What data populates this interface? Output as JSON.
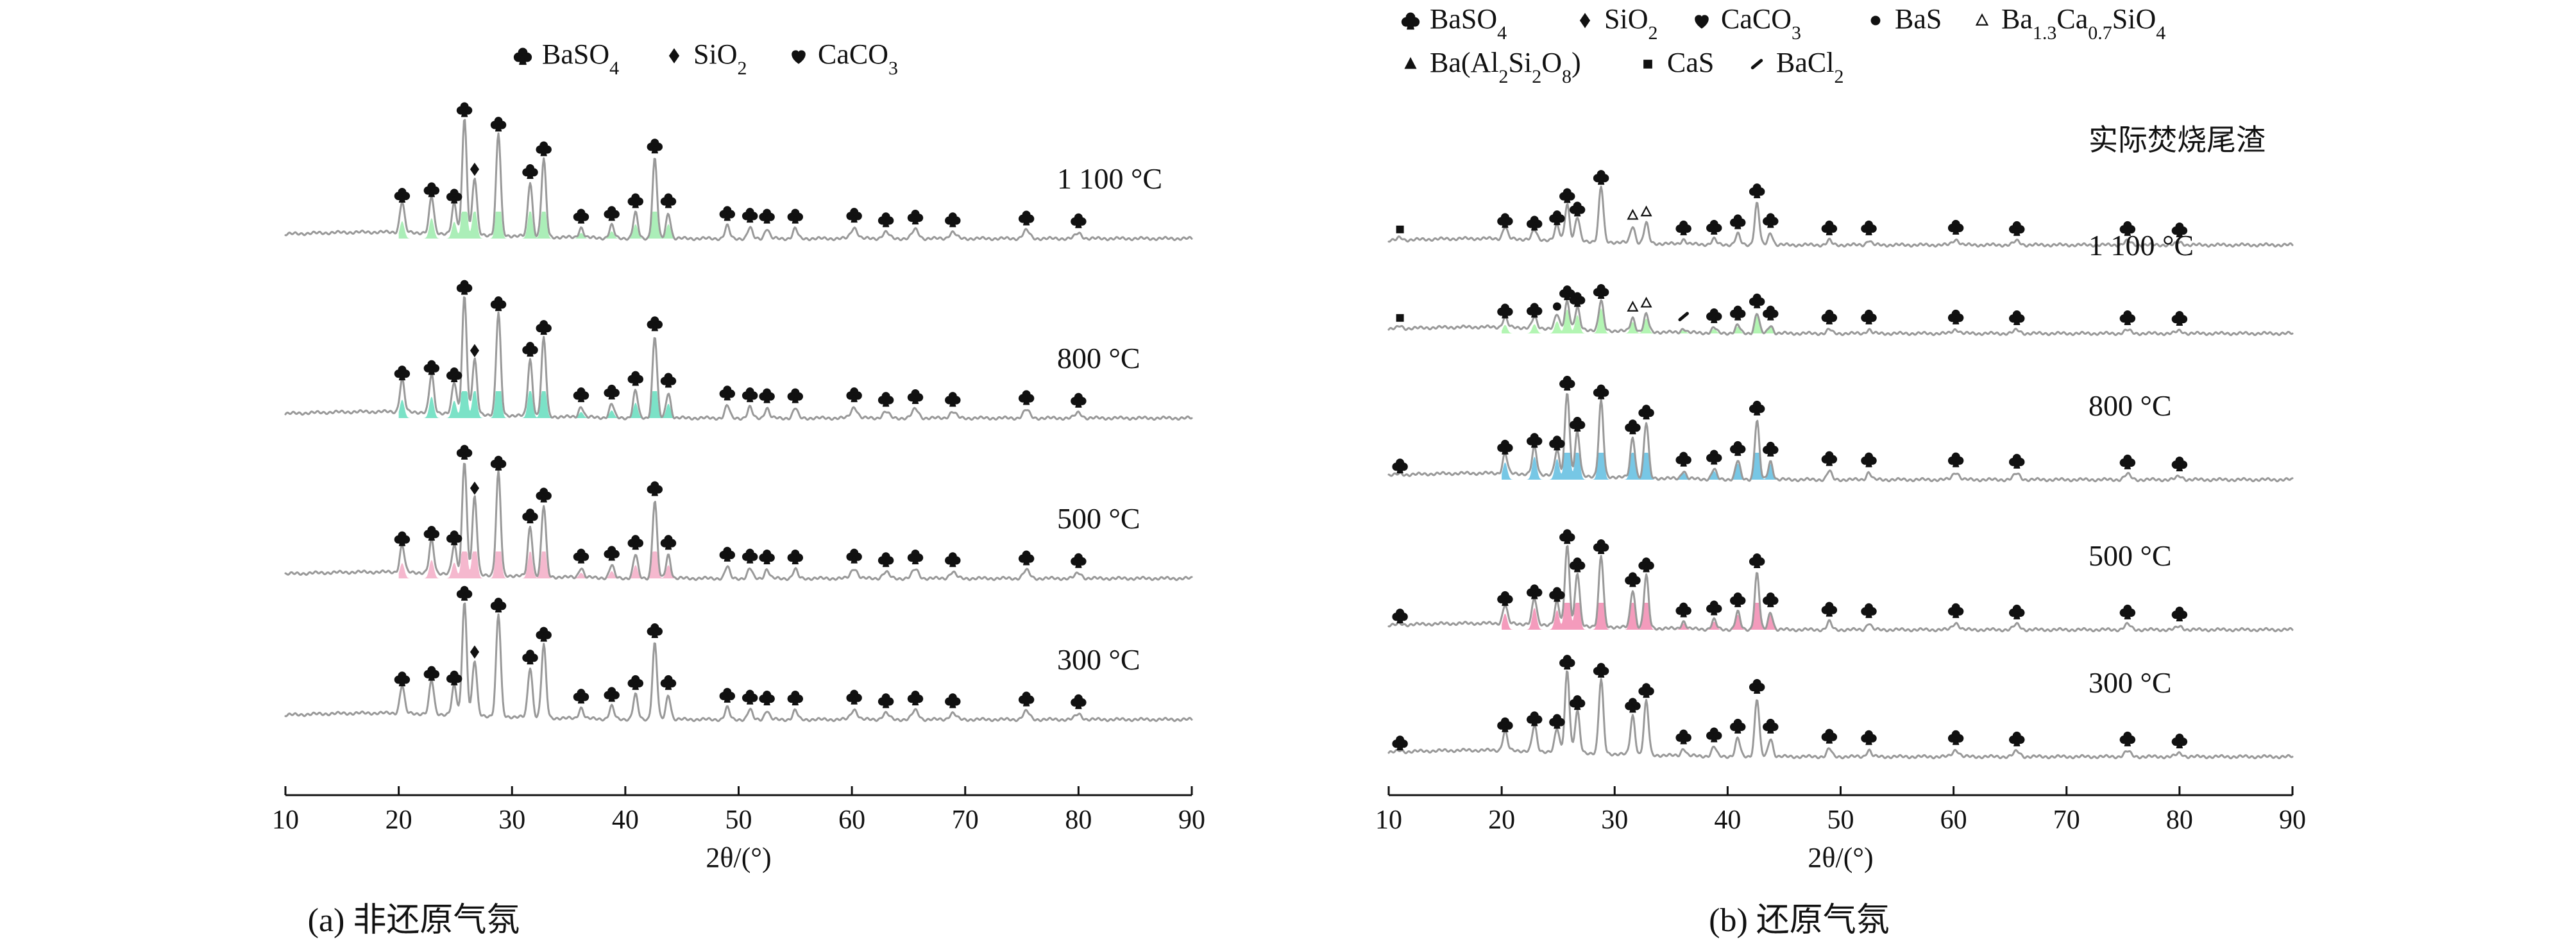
{
  "chart_data": [
    {
      "type": "line",
      "panel": "a",
      "title": "(a) 非还原气氛",
      "xlabel": "2θ/(°)",
      "ylabel": "",
      "xlim": [
        10,
        90
      ],
      "x_ticks": [
        10,
        20,
        30,
        40,
        50,
        60,
        70,
        80,
        90
      ],
      "legend_position": "top",
      "grid": false,
      "legend": [
        {
          "symbol": "club",
          "label_main": "BaSO",
          "label_sub": "4"
        },
        {
          "symbol": "diamond",
          "label_main": "SiO",
          "label_sub": "2"
        },
        {
          "symbol": "heart",
          "label_main": "CaCO",
          "label_sub": "3"
        }
      ],
      "series": [
        {
          "name": "1 100 °C",
          "label": "1 100 °C",
          "highlight": "#8fe8a0",
          "x": [
            10,
            20.3,
            22.9,
            24.9,
            25.8,
            26.7,
            28.8,
            31.6,
            32.8,
            36.1,
            38.8,
            40.9,
            42.6,
            43.8,
            49.0,
            51.0,
            52.5,
            55.0,
            60.2,
            63.0,
            65.6,
            68.9,
            75.4,
            80.0,
            90
          ],
          "y": [
            0,
            34,
            40,
            33,
            128,
            62,
            112,
            60,
            85,
            11,
            14,
            28,
            88,
            28,
            14,
            12,
            11,
            11,
            12,
            7,
            10,
            7,
            9,
            6,
            0
          ]
        },
        {
          "name": "800 °C",
          "label": "800 °C",
          "highlight": "#4fd8b4",
          "x": [
            10,
            20.3,
            22.9,
            24.9,
            25.8,
            26.7,
            28.8,
            31.6,
            32.8,
            36.1,
            38.8,
            40.9,
            42.6,
            43.8,
            49.0,
            51.0,
            52.5,
            55.0,
            60.2,
            63.0,
            65.6,
            68.9,
            75.4,
            80.0,
            90
          ],
          "y": [
            0,
            36,
            42,
            34,
            130,
            60,
            112,
            62,
            86,
            12,
            15,
            30,
            90,
            28,
            14,
            12,
            11,
            11,
            12,
            7,
            10,
            7,
            9,
            6,
            0
          ]
        },
        {
          "name": "500 °C",
          "label": "500 °C",
          "highlight": "#f2a0be",
          "x": [
            10,
            20.3,
            22.9,
            24.9,
            25.8,
            26.7,
            28.8,
            31.6,
            32.8,
            36.1,
            38.8,
            40.9,
            42.6,
            43.8,
            49.0,
            51.0,
            52.5,
            55.0,
            60.2,
            63.0,
            65.6,
            68.9,
            75.4,
            80.0,
            90
          ],
          "y": [
            0,
            30,
            36,
            31,
            125,
            85,
            113,
            55,
            78,
            11,
            14,
            26,
            85,
            26,
            13,
            11,
            10,
            10,
            11,
            7,
            10,
            7,
            9,
            6,
            0
          ]
        },
        {
          "name": "300 °C",
          "label": "300 °C",
          "highlight": "",
          "x": [
            10,
            20.3,
            22.9,
            24.9,
            25.8,
            26.7,
            28.8,
            31.6,
            32.8,
            36.1,
            38.8,
            40.9,
            42.6,
            43.8,
            49.0,
            51.0,
            52.5,
            55.0,
            60.2,
            63.0,
            65.6,
            68.9,
            75.4,
            80.0,
            90
          ],
          "y": [
            0,
            31,
            37,
            32,
            125,
            60,
            112,
            55,
            80,
            12,
            14,
            27,
            84,
            27,
            13,
            11,
            10,
            10,
            11,
            7,
            10,
            7,
            9,
            6,
            0
          ]
        }
      ]
    },
    {
      "type": "line",
      "panel": "b",
      "title": "(b) 还原气氛",
      "xlabel": "2θ/(°)",
      "ylabel": "",
      "xlim": [
        10,
        90
      ],
      "x_ticks": [
        10,
        20,
        30,
        40,
        50,
        60,
        70,
        80,
        90
      ],
      "legend_position": "top",
      "grid": false,
      "legend": [
        {
          "symbol": "club",
          "label_main": "BaSO",
          "label_sub": "4"
        },
        {
          "symbol": "diamond",
          "label_main": "SiO",
          "label_sub": "2"
        },
        {
          "symbol": "heart",
          "label_main": "CaCO",
          "label_sub": "3"
        },
        {
          "symbol": "dot",
          "label_main": "BaS",
          "label_sub": ""
        },
        {
          "symbol": "open-triangle",
          "label_main": "Ba",
          "label_sub": "1.3",
          "label_main2": "Ca",
          "label_sub2": "0.7",
          "label_tail": "SiO",
          "label_tail_sub": "4"
        },
        {
          "symbol": "triangle",
          "label_main": "Ba(Al",
          "label_sub": "2",
          "label_main2": "Si",
          "label_sub2": "2",
          "label_tail": "O",
          "label_tail_sub": "8",
          "label_end": ")"
        },
        {
          "symbol": "square",
          "label_main": "CaS",
          "label_sub": ""
        },
        {
          "symbol": "slash",
          "label_main": "BaCl",
          "label_sub": "2"
        }
      ],
      "series": [
        {
          "name": "实际焚烧尾渣",
          "label": "实际焚烧尾渣",
          "highlight": "",
          "x": [
            10,
            11,
            20.3,
            22.9,
            24.9,
            25.8,
            26.7,
            28.8,
            31.6,
            32.8,
            36.1,
            38.8,
            40.9,
            42.6,
            43.8,
            49.0,
            52.5,
            60.2,
            65.6,
            75.4,
            80.0,
            90
          ],
          "y": [
            0,
            4,
            18,
            14,
            22,
            55,
            35,
            82,
            25,
            30,
            7,
            8,
            16,
            62,
            18,
            7,
            7,
            8,
            6,
            6,
            4,
            0
          ]
        },
        {
          "name": "1 100 °C",
          "label": "1 100 °C",
          "highlight": "#9af29a",
          "x": [
            10,
            11,
            20.3,
            22.9,
            24.9,
            25.8,
            26.7,
            28.8,
            31.6,
            32.8,
            36.1,
            38.8,
            40.9,
            42.6,
            43.8,
            49.0,
            52.5,
            60.2,
            65.6,
            75.4,
            80.0,
            90
          ],
          "y": [
            0,
            4,
            15,
            16,
            21,
            42,
            32,
            44,
            20,
            26,
            6,
            8,
            12,
            30,
            12,
            6,
            6,
            6,
            5,
            5,
            4,
            0
          ]
        },
        {
          "name": "800 °C",
          "label": "800 °C",
          "highlight": "#4ab4dc",
          "x": [
            10,
            11,
            20.3,
            22.9,
            24.9,
            25.8,
            26.7,
            28.8,
            31.6,
            32.8,
            36.1,
            38.8,
            40.9,
            42.6,
            43.8,
            49.0,
            52.5,
            60.2,
            65.6,
            75.4,
            80.0,
            90
          ],
          "y": [
            0,
            2,
            30,
            40,
            36,
            125,
            64,
            112,
            60,
            82,
            12,
            15,
            28,
            88,
            27,
            13,
            11,
            11,
            9,
            8,
            5,
            0
          ]
        },
        {
          "name": "500 °C",
          "label": "500 °C",
          "highlight": "#f07aa6",
          "x": [
            10,
            11,
            20.3,
            22.9,
            24.9,
            25.8,
            26.7,
            28.8,
            31.6,
            32.8,
            36.1,
            38.8,
            40.9,
            42.6,
            43.8,
            49.0,
            52.5,
            60.2,
            65.6,
            75.4,
            80.0,
            90
          ],
          "y": [
            0,
            2,
            28,
            38,
            34,
            120,
            78,
            105,
            56,
            78,
            11,
            14,
            26,
            84,
            26,
            12,
            10,
            10,
            8,
            8,
            5,
            0
          ]
        },
        {
          "name": "300 °C",
          "label": "300 °C",
          "highlight": "",
          "x": [
            10,
            11,
            20.3,
            22.9,
            24.9,
            25.8,
            26.7,
            28.8,
            31.6,
            32.8,
            36.1,
            38.8,
            40.9,
            42.6,
            43.8,
            49.0,
            52.5,
            60.2,
            65.6,
            75.4,
            80.0,
            90
          ],
          "y": [
            0,
            2,
            29,
            38,
            34,
            122,
            62,
            110,
            58,
            80,
            11,
            14,
            27,
            86,
            27,
            12,
            10,
            10,
            8,
            8,
            5,
            0
          ]
        }
      ]
    }
  ]
}
